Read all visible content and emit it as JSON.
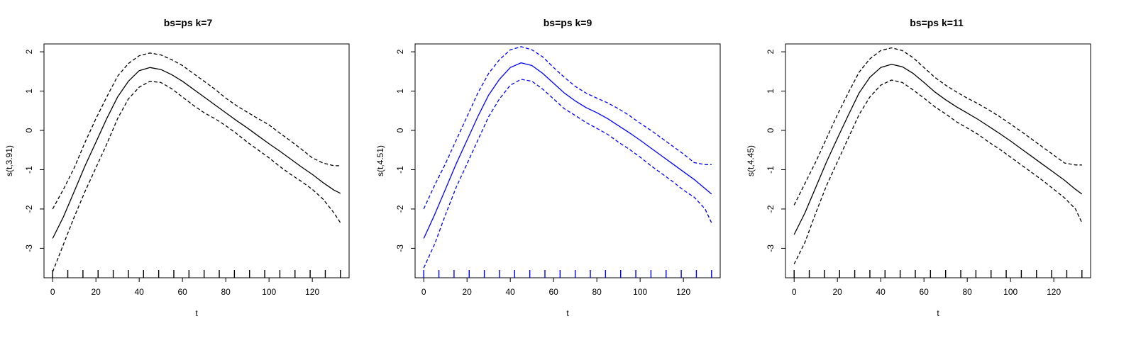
{
  "chart_data": [
    {
      "type": "line",
      "title": "bs=ps k=7",
      "xlabel": "t",
      "ylabel": "s(t,3.91)",
      "xlim": [
        -4,
        137
      ],
      "ylim": [
        -3.75,
        2.2
      ],
      "xticks": [
        0,
        20,
        40,
        60,
        80,
        100,
        120
      ],
      "yticks": [
        -3,
        -2,
        -1,
        0,
        1,
        2
      ],
      "line_color": "#000000",
      "rug": [
        0,
        7,
        14,
        21,
        28,
        35,
        42,
        49,
        56,
        63,
        70,
        77,
        84,
        91,
        98,
        105,
        112,
        119,
        126,
        133
      ],
      "x": [
        0,
        5,
        10,
        15,
        20,
        25,
        30,
        35,
        40,
        45,
        50,
        55,
        60,
        65,
        70,
        75,
        80,
        85,
        90,
        95,
        100,
        105,
        110,
        115,
        120,
        125,
        130,
        133
      ],
      "series": [
        {
          "role": "estimate",
          "values": [
            -2.75,
            -2.2,
            -1.55,
            -0.9,
            -0.3,
            0.3,
            0.85,
            1.25,
            1.52,
            1.6,
            1.55,
            1.42,
            1.25,
            1.05,
            0.85,
            0.65,
            0.45,
            0.25,
            0.06,
            -0.14,
            -0.34,
            -0.53,
            -0.73,
            -0.93,
            -1.12,
            -1.33,
            -1.52,
            -1.6
          ]
        },
        {
          "role": "upper",
          "values": [
            -2.0,
            -1.5,
            -0.95,
            -0.3,
            0.3,
            0.85,
            1.38,
            1.7,
            1.9,
            1.97,
            1.92,
            1.8,
            1.65,
            1.45,
            1.25,
            1.05,
            0.82,
            0.63,
            0.46,
            0.3,
            0.14,
            -0.07,
            -0.27,
            -0.48,
            -0.7,
            -0.83,
            -0.9,
            -0.9
          ]
        },
        {
          "role": "lower",
          "values": [
            -3.6,
            -2.9,
            -2.2,
            -1.55,
            -0.95,
            -0.35,
            0.3,
            0.8,
            1.1,
            1.25,
            1.22,
            1.06,
            0.85,
            0.64,
            0.45,
            0.3,
            0.12,
            -0.08,
            -0.3,
            -0.5,
            -0.7,
            -0.92,
            -1.12,
            -1.3,
            -1.5,
            -1.75,
            -2.1,
            -2.35
          ]
        }
      ]
    },
    {
      "type": "line",
      "title": "bs=ps k=9",
      "xlabel": "t",
      "ylabel": "s(t,4.51)",
      "xlim": [
        -4,
        137
      ],
      "ylim": [
        -3.75,
        2.2
      ],
      "xticks": [
        0,
        20,
        40,
        60,
        80,
        100,
        120
      ],
      "yticks": [
        -3,
        -2,
        -1,
        0,
        1,
        2
      ],
      "line_color": "#0000ff",
      "rug": [
        0,
        7,
        14,
        21,
        28,
        35,
        42,
        49,
        56,
        63,
        70,
        77,
        84,
        91,
        98,
        105,
        112,
        119,
        126,
        133
      ],
      "x": [
        0,
        5,
        10,
        15,
        20,
        25,
        30,
        35,
        40,
        45,
        50,
        55,
        60,
        65,
        70,
        75,
        80,
        85,
        90,
        95,
        100,
        105,
        110,
        115,
        120,
        125,
        130,
        133
      ],
      "series": [
        {
          "role": "estimate",
          "values": [
            -2.75,
            -2.15,
            -1.5,
            -0.85,
            -0.25,
            0.35,
            0.9,
            1.3,
            1.6,
            1.72,
            1.65,
            1.45,
            1.2,
            0.95,
            0.75,
            0.58,
            0.45,
            0.3,
            0.12,
            -0.06,
            -0.25,
            -0.45,
            -0.65,
            -0.85,
            -1.05,
            -1.25,
            -1.48,
            -1.62
          ]
        },
        {
          "role": "upper",
          "values": [
            -2.0,
            -1.4,
            -0.85,
            -0.25,
            0.35,
            0.95,
            1.45,
            1.8,
            2.05,
            2.13,
            2.05,
            1.87,
            1.6,
            1.35,
            1.12,
            0.95,
            0.82,
            0.7,
            0.55,
            0.38,
            0.18,
            0.0,
            -0.2,
            -0.4,
            -0.6,
            -0.82,
            -0.87,
            -0.87
          ]
        },
        {
          "role": "lower",
          "values": [
            -3.5,
            -2.9,
            -2.15,
            -1.45,
            -0.85,
            -0.25,
            0.35,
            0.8,
            1.15,
            1.3,
            1.25,
            1.05,
            0.8,
            0.55,
            0.38,
            0.2,
            0.05,
            -0.1,
            -0.3,
            -0.48,
            -0.68,
            -0.9,
            -1.1,
            -1.3,
            -1.52,
            -1.7,
            -2.0,
            -2.35
          ]
        }
      ]
    },
    {
      "type": "line",
      "title": "bs=ps k=11",
      "xlabel": "t",
      "ylabel": "s(t,4.45)",
      "xlim": [
        -4,
        137
      ],
      "ylim": [
        -3.75,
        2.2
      ],
      "xticks": [
        0,
        20,
        40,
        60,
        80,
        100,
        120
      ],
      "yticks": [
        -3,
        -2,
        -1,
        0,
        1,
        2
      ],
      "line_color": "#000000",
      "rug": [
        0,
        7,
        14,
        21,
        28,
        35,
        42,
        49,
        56,
        63,
        70,
        77,
        84,
        91,
        98,
        105,
        112,
        119,
        126,
        133
      ],
      "x": [
        0,
        5,
        10,
        15,
        20,
        25,
        30,
        35,
        40,
        45,
        50,
        55,
        60,
        65,
        70,
        75,
        80,
        85,
        90,
        95,
        100,
        105,
        110,
        115,
        120,
        125,
        130,
        133
      ],
      "series": [
        {
          "role": "estimate",
          "values": [
            -2.65,
            -2.1,
            -1.45,
            -0.8,
            -0.2,
            0.38,
            0.95,
            1.35,
            1.6,
            1.68,
            1.62,
            1.45,
            1.22,
            0.98,
            0.78,
            0.6,
            0.44,
            0.28,
            0.1,
            -0.08,
            -0.27,
            -0.47,
            -0.67,
            -0.87,
            -1.07,
            -1.27,
            -1.5,
            -1.62
          ]
        },
        {
          "role": "upper",
          "values": [
            -1.9,
            -1.35,
            -0.8,
            -0.2,
            0.4,
            0.95,
            1.48,
            1.82,
            2.03,
            2.1,
            2.03,
            1.85,
            1.6,
            1.35,
            1.15,
            0.98,
            0.82,
            0.68,
            0.52,
            0.35,
            0.16,
            -0.03,
            -0.23,
            -0.43,
            -0.63,
            -0.83,
            -0.88,
            -0.88
          ]
        },
        {
          "role": "lower",
          "values": [
            -3.4,
            -2.85,
            -2.1,
            -1.4,
            -0.8,
            -0.2,
            0.4,
            0.85,
            1.15,
            1.28,
            1.22,
            1.03,
            0.82,
            0.6,
            0.42,
            0.22,
            0.06,
            -0.1,
            -0.3,
            -0.48,
            -0.68,
            -0.88,
            -1.08,
            -1.28,
            -1.5,
            -1.72,
            -2.0,
            -2.35
          ]
        }
      ]
    }
  ]
}
